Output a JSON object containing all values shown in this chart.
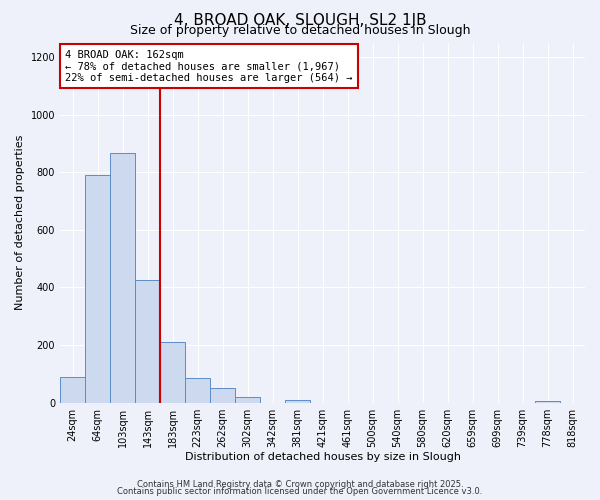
{
  "title": "4, BROAD OAK, SLOUGH, SL2 1JB",
  "subtitle": "Size of property relative to detached houses in Slough",
  "xlabel": "Distribution of detached houses by size in Slough",
  "ylabel": "Number of detached properties",
  "bar_labels": [
    "24sqm",
    "64sqm",
    "103sqm",
    "143sqm",
    "183sqm",
    "223sqm",
    "262sqm",
    "302sqm",
    "342sqm",
    "381sqm",
    "421sqm",
    "461sqm",
    "500sqm",
    "540sqm",
    "580sqm",
    "620sqm",
    "659sqm",
    "699sqm",
    "739sqm",
    "778sqm",
    "818sqm"
  ],
  "bar_values": [
    90,
    790,
    865,
    425,
    210,
    85,
    50,
    20,
    0,
    10,
    0,
    0,
    0,
    0,
    0,
    0,
    0,
    0,
    0,
    5,
    0
  ],
  "bar_color": "#ccd9ee",
  "bar_edge_color": "#5b8cc8",
  "vline_x": 3.5,
  "vline_color": "#cc0000",
  "annotation_title": "4 BROAD OAK: 162sqm",
  "annotation_line1": "← 78% of detached houses are smaller (1,967)",
  "annotation_line2": "22% of semi-detached houses are larger (564) →",
  "annotation_box_color": "#ffffff",
  "annotation_box_edge_color": "#cc0000",
  "ylim": [
    0,
    1250
  ],
  "yticks": [
    0,
    200,
    400,
    600,
    800,
    1000,
    1200
  ],
  "footer1": "Contains HM Land Registry data © Crown copyright and database right 2025.",
  "footer2": "Contains public sector information licensed under the Open Government Licence v3.0.",
  "bg_color": "#eef1fa",
  "plot_bg_color": "#eef1fa",
  "grid_color": "#ffffff",
  "title_fontsize": 11,
  "subtitle_fontsize": 9,
  "axis_label_fontsize": 8,
  "tick_fontsize": 7,
  "annotation_fontsize": 7.5,
  "footer_fontsize": 6
}
